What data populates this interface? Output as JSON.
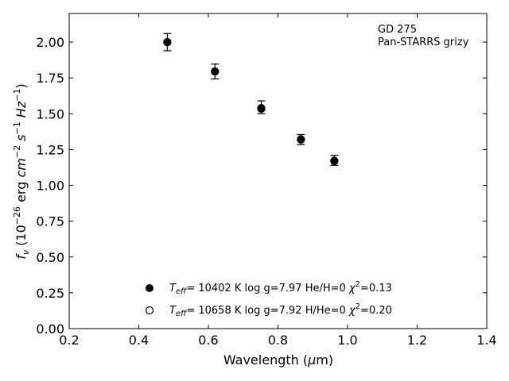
{
  "chart_data": {
    "type": "scatter",
    "title": "",
    "annotation": [
      "GD 275",
      "Pan-STARRS grizy"
    ],
    "xlabel": {
      "prefix": "Wavelength (",
      "symbol": "μ",
      "suffix": "m)"
    },
    "ylabel": {
      "f": "f",
      "nu": "ν",
      "open": " (10",
      "exp1": "−26",
      "mid": " erg ",
      "cm": "cm",
      "exp2": "−2",
      "s": " s",
      "exp3": "−1",
      "hz": " Hz",
      "exp4": "−1",
      "close": ")"
    },
    "xlim": [
      0.2,
      1.4
    ],
    "ylim": [
      0.0,
      2.2
    ],
    "xticks": [
      0.2,
      0.4,
      0.6,
      0.8,
      1.0,
      1.2,
      1.4
    ],
    "yticks": [
      0.0,
      0.25,
      0.5,
      0.75,
      1.0,
      1.25,
      1.5,
      1.75,
      2.0
    ],
    "x_tick_labels": [
      "0.2",
      "0.4",
      "0.6",
      "0.8",
      "1.0",
      "1.2",
      "1.4"
    ],
    "y_tick_labels": [
      "0.00",
      "0.25",
      "0.50",
      "0.75",
      "1.00",
      "1.25",
      "1.50",
      "1.75",
      "2.00"
    ],
    "observed": {
      "x": [
        0.482,
        0.619,
        0.752,
        0.866,
        0.962
      ],
      "y": [
        2.0,
        1.795,
        1.545,
        1.32,
        1.175
      ],
      "yerr": [
        0.06,
        0.052,
        0.045,
        0.035,
        0.035
      ]
    },
    "series": [
      {
        "marker": "filled",
        "teff": "10402",
        "logg": "7.97",
        "comp_label": "He/H",
        "comp": "0",
        "chi2": "0.13",
        "x": [
          0.482,
          0.619,
          0.752,
          0.866,
          0.962
        ],
        "y": [
          2.0,
          1.795,
          1.54,
          1.32,
          1.17
        ]
      },
      {
        "marker": "open",
        "teff": "10658",
        "logg": "7.92",
        "comp_label": "H/He",
        "comp": "0",
        "chi2": "0.20",
        "x": [
          0.482,
          0.619,
          0.752,
          0.866,
          0.962
        ],
        "y": [
          2.0,
          1.795,
          1.535,
          1.322,
          1.172
        ]
      }
    ],
    "legend_location": "lower-center",
    "grid": false
  }
}
